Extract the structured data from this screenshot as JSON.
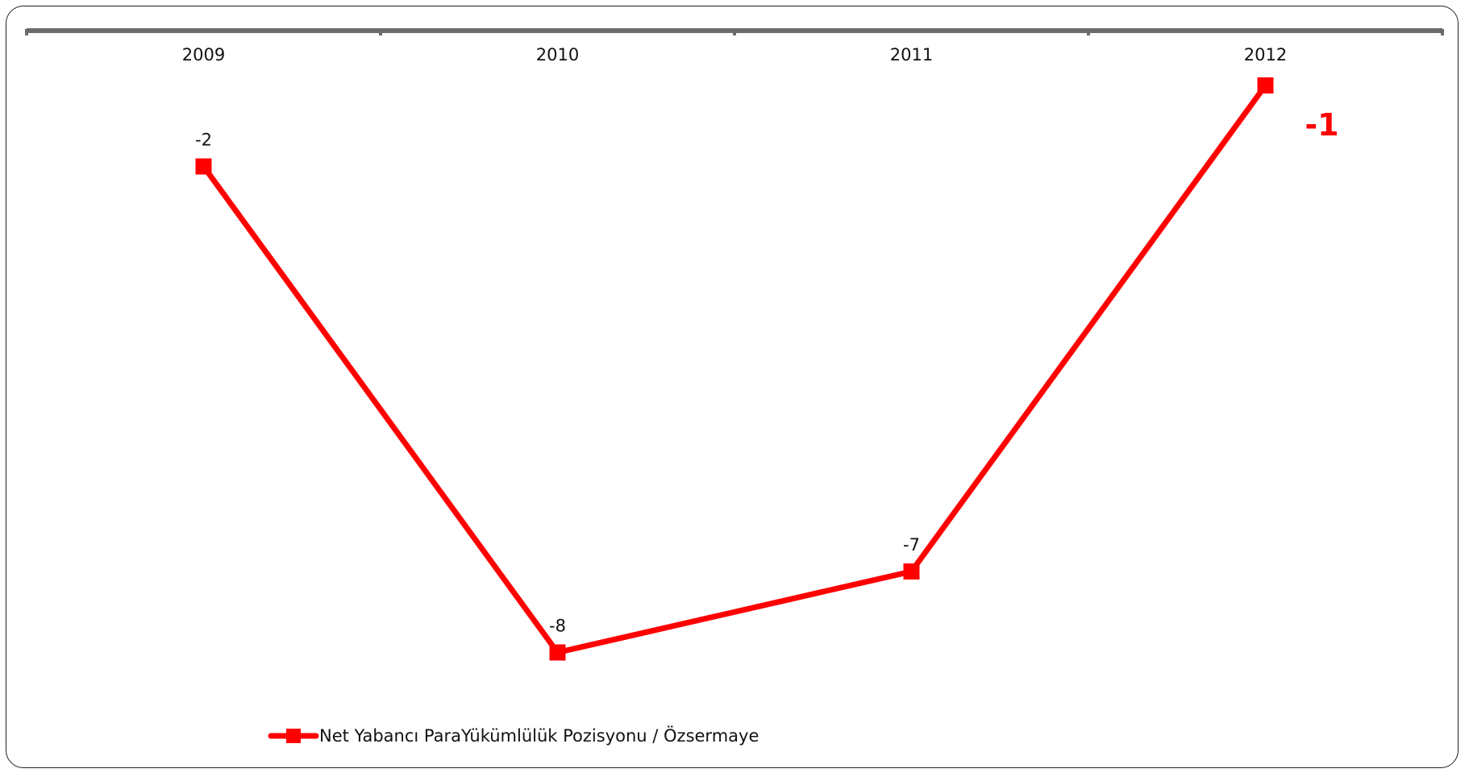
{
  "chart_data": {
    "type": "line",
    "categories": [
      "2009",
      "2010",
      "2011",
      "2012"
    ],
    "series": [
      {
        "name": "Net Yabancı ParaYükümlülük Pozisyonu / Özsermaye",
        "values": [
          -2,
          -8,
          -7,
          -1
        ],
        "data_labels": [
          "-2",
          "-8",
          "-7",
          "-1"
        ],
        "color": "#ff0000",
        "marker": "square"
      }
    ],
    "title": "",
    "xlabel": "",
    "ylabel": "",
    "x_axis_position": "top",
    "ylim": [
      -9,
      -1
    ],
    "grid": false,
    "legend_position": "bottom-left",
    "highlight_label_index": 3,
    "highlight_color": "#ff0000",
    "axis_color": "#6b6b6b"
  }
}
